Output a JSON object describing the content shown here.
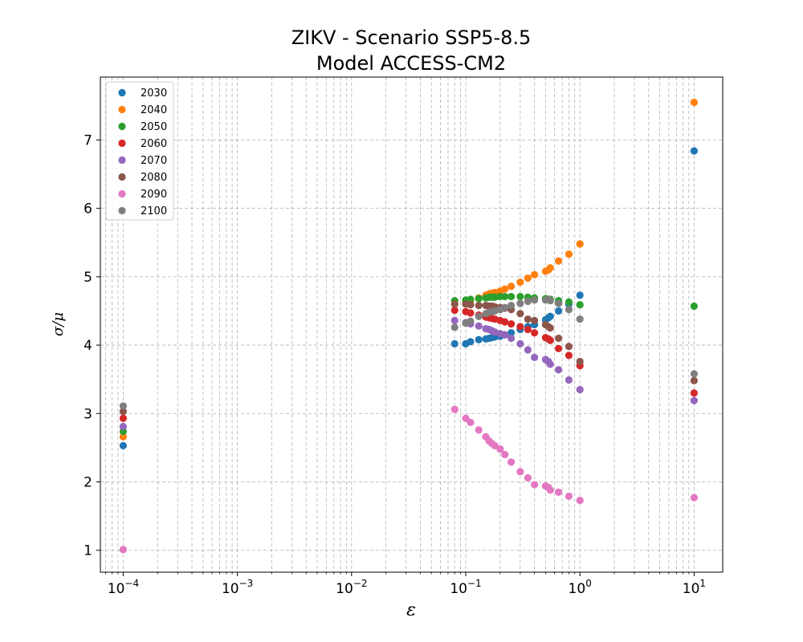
{
  "chart_data": {
    "type": "scatter",
    "title": [
      "ZIKV - Scenario SSP5-8.5",
      "Model ACCESS-CM2"
    ],
    "xlabel": "ε",
    "ylabel": "σ/μ",
    "xscale": "log",
    "xlim": [
      6.31e-05,
      17.8
    ],
    "ylim": [
      0.68,
      7.92
    ],
    "x_ticks": [
      {
        "value": 0.0001,
        "base": "10",
        "exp": "−4"
      },
      {
        "value": 0.001,
        "base": "10",
        "exp": "−3"
      },
      {
        "value": 0.01,
        "base": "10",
        "exp": "−2"
      },
      {
        "value": 0.1,
        "base": "10",
        "exp": "−1"
      },
      {
        "value": 1,
        "base": "10",
        "exp": "0"
      },
      {
        "value": 10,
        "base": "10",
        "exp": "1"
      }
    ],
    "y_ticks": [
      1,
      2,
      3,
      4,
      5,
      6,
      7
    ],
    "grid": true,
    "legend_position": "top-left",
    "x": [
      0.0001,
      0.08,
      0.1,
      0.11,
      0.13,
      0.15,
      0.16,
      0.17,
      0.18,
      0.2,
      0.22,
      0.25,
      0.3,
      0.35,
      0.4,
      0.5,
      0.53,
      0.55,
      0.65,
      0.8,
      1.0,
      10
    ],
    "series": [
      {
        "name": "2030",
        "color": "#1f77b4",
        "values": [
          2.53,
          4.02,
          4.02,
          4.05,
          4.08,
          4.09,
          4.1,
          4.11,
          4.12,
          4.13,
          4.15,
          4.18,
          4.23,
          4.27,
          4.3,
          4.37,
          4.4,
          4.42,
          4.5,
          4.6,
          4.73,
          6.84
        ]
      },
      {
        "name": "2040",
        "color": "#ff7f0e",
        "values": [
          2.66,
          4.6,
          4.63,
          4.65,
          4.69,
          4.73,
          4.75,
          4.76,
          4.77,
          4.79,
          4.82,
          4.86,
          4.92,
          4.98,
          5.03,
          5.08,
          5.1,
          5.13,
          5.23,
          5.33,
          5.48,
          7.55
        ]
      },
      {
        "name": "2050",
        "color": "#2ca02c",
        "values": [
          2.74,
          4.65,
          4.66,
          4.67,
          4.68,
          4.69,
          4.7,
          4.7,
          4.7,
          4.71,
          4.71,
          4.71,
          4.71,
          4.7,
          4.69,
          4.68,
          4.67,
          4.67,
          4.65,
          4.63,
          4.59,
          4.57
        ]
      },
      {
        "name": "2060",
        "color": "#d62728",
        "values": [
          2.93,
          4.51,
          4.49,
          4.47,
          4.44,
          4.41,
          4.4,
          4.39,
          4.38,
          4.36,
          4.34,
          4.31,
          4.27,
          4.23,
          4.18,
          4.11,
          4.09,
          4.07,
          3.95,
          3.85,
          3.7,
          3.3
        ]
      },
      {
        "name": "2070",
        "color": "#9467bd",
        "values": [
          2.81,
          4.36,
          4.33,
          4.31,
          4.28,
          4.24,
          4.23,
          4.21,
          4.19,
          4.17,
          4.15,
          4.1,
          4.02,
          3.93,
          3.82,
          3.79,
          3.76,
          3.72,
          3.64,
          3.49,
          3.35,
          3.19
        ]
      },
      {
        "name": "2080",
        "color": "#8c564b",
        "values": [
          3.03,
          4.6,
          4.6,
          4.59,
          4.58,
          4.58,
          4.57,
          4.57,
          4.56,
          4.55,
          4.54,
          4.52,
          4.46,
          4.38,
          4.36,
          4.3,
          4.27,
          4.25,
          4.1,
          3.98,
          3.76,
          3.48
        ]
      },
      {
        "name": "2090",
        "color": "#e377c2",
        "values": [
          1.01,
          3.06,
          2.93,
          2.87,
          2.76,
          2.66,
          2.6,
          2.56,
          2.53,
          2.48,
          2.4,
          2.29,
          2.15,
          2.06,
          1.96,
          1.94,
          1.92,
          1.88,
          1.85,
          1.79,
          1.73,
          1.77
        ]
      },
      {
        "name": "2100",
        "color": "#7f7f7f",
        "values": [
          3.11,
          4.26,
          4.32,
          4.35,
          4.42,
          4.46,
          4.48,
          4.49,
          4.5,
          4.52,
          4.55,
          4.58,
          4.61,
          4.64,
          4.66,
          4.66,
          4.67,
          4.65,
          4.61,
          4.52,
          4.38,
          3.58
        ]
      }
    ]
  }
}
